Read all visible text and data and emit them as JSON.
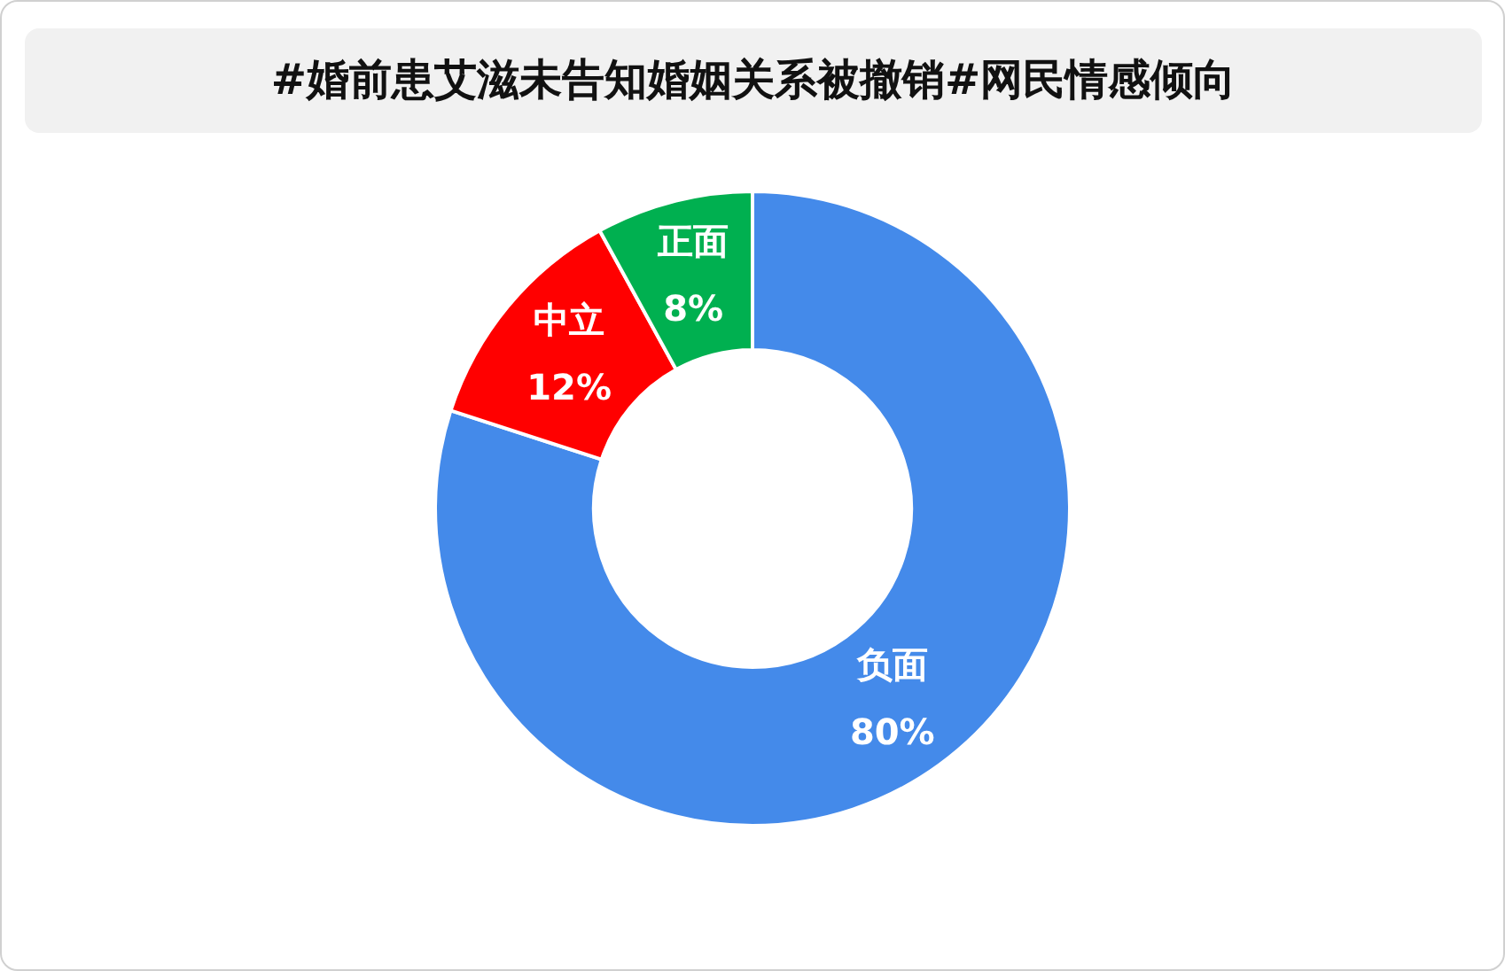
{
  "chart_data": {
    "type": "donut",
    "title": "#婚前患艾滋未告知婚姻关系被撤销#网民情感倾向",
    "categories": [
      "负面",
      "中立",
      "正面"
    ],
    "values": [
      80,
      12,
      8
    ],
    "value_labels": [
      "80%",
      "12%",
      "8%"
    ],
    "colors": [
      "#448aea",
      "#ff0000",
      "#00b050"
    ],
    "legend": false
  }
}
